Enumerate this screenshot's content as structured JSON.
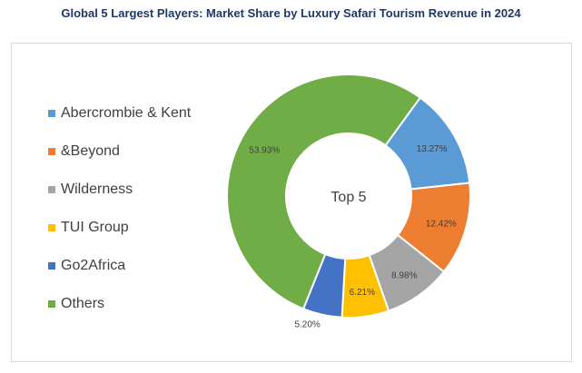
{
  "title": "Global 5 Largest Players: Market Share by Luxury Safari Tourism Revenue in 2024",
  "chart_data": {
    "type": "pie",
    "variant": "donut",
    "center_label": "Top 5",
    "legend_position": "left",
    "slices": [
      {
        "name": "Abercrombie & Kent",
        "value": 13.27,
        "label": "13.27%",
        "color": "#5b9bd5"
      },
      {
        "name": "&Beyond",
        "value": 12.42,
        "label": "12.42%",
        "color": "#ed7d31"
      },
      {
        "name": "Wilderness",
        "value": 8.98,
        "label": "8.98%",
        "color": "#a5a5a5"
      },
      {
        "name": "TUI Group",
        "value": 6.21,
        "label": "6.21%",
        "color": "#ffc000"
      },
      {
        "name": "Go2Africa",
        "value": 5.2,
        "label": "5.20%",
        "color": "#4472c4"
      },
      {
        "name": "Others",
        "value": 53.93,
        "label": "53.93%",
        "color": "#70ad47"
      }
    ]
  }
}
